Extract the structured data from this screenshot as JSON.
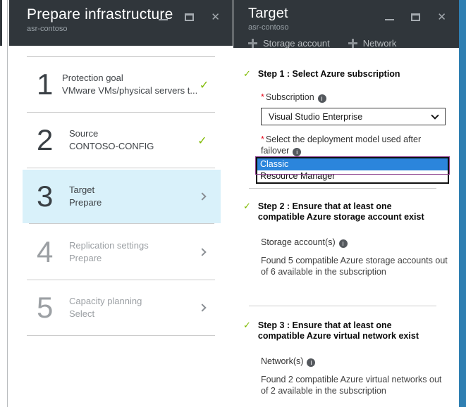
{
  "colors": {
    "header_bg": "#30363b",
    "accent_strip": "#2f7fb2",
    "active_step_bg": "#d9f1fa",
    "success_green": "#7fba00",
    "required_red": "#e81123",
    "selection_blue": "#2b85dc",
    "focus_purple": "#8b3d8b",
    "divider": "#cccccc",
    "muted_text": "#9ca0a4"
  },
  "icons": {
    "check": "✓",
    "close": "✕",
    "info": "i",
    "required": "*"
  },
  "left_blade": {
    "title": "Prepare infrastructure",
    "subtitle": "asr-contoso",
    "steps": [
      {
        "number": "1",
        "title": "Protection goal",
        "subtitle": "VMware VMs/physical servers t...",
        "status": "done"
      },
      {
        "number": "2",
        "title": "Source",
        "subtitle": "CONTOSO-CONFIG",
        "status": "done"
      },
      {
        "number": "3",
        "title": "Target",
        "subtitle": "Prepare",
        "status": "active"
      },
      {
        "number": "4",
        "title": "Replication settings",
        "subtitle": "Prepare",
        "status": "pending"
      },
      {
        "number": "5",
        "title": "Capacity planning",
        "subtitle": "Select",
        "status": "pending"
      }
    ]
  },
  "right_blade": {
    "title": "Target",
    "subtitle": "asr-contoso",
    "toolbar": [
      {
        "label": "Storage account"
      },
      {
        "label": "Network"
      }
    ],
    "step1": {
      "heading": "Step 1 : Select Azure subscription",
      "subscription_label": "Subscription",
      "subscription_value": "Visual Studio Enterprise",
      "deployment_label": "Select the deployment model used after failover",
      "options": [
        {
          "label": "Classic",
          "selected": true
        },
        {
          "label": "Resource Manager",
          "selected": false
        }
      ]
    },
    "step2": {
      "heading": "Step 2 : Ensure that at least one compatible Azure storage account exist",
      "field_label": "Storage account(s)",
      "result": "Found 5 compatible Azure storage accounts out of 6 available in the subscription"
    },
    "step3": {
      "heading": "Step 3 : Ensure that at least one compatible Azure virtual network exist",
      "field_label": "Network(s)",
      "result": "Found 2 compatible Azure virtual networks out of 2 available in the subscription"
    }
  }
}
